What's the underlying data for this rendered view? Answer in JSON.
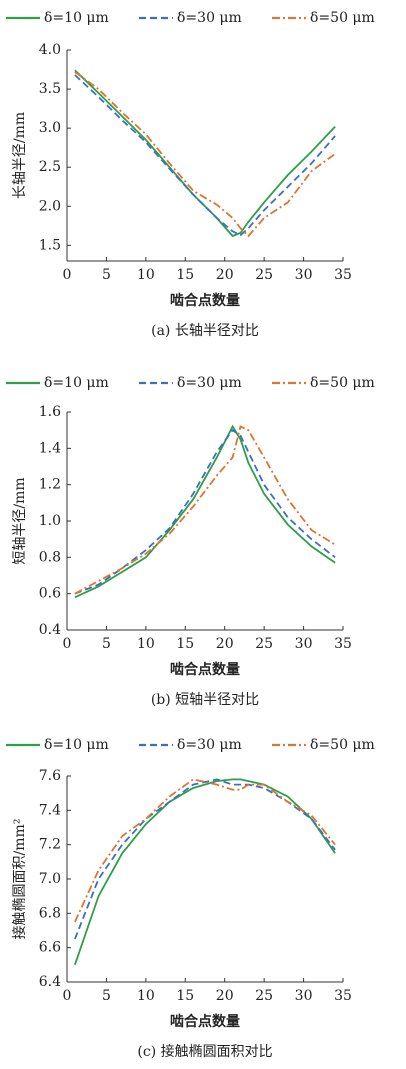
{
  "chart_data": [
    {
      "type": "line",
      "xlabel": "啮合点数量",
      "ylabel": "长轴半径/mm",
      "caption": "(a) 长轴半径对比",
      "x": [
        1,
        4,
        7,
        10,
        13,
        16,
        19,
        21,
        22,
        23,
        25,
        28,
        31,
        34
      ],
      "series": [
        {
          "name": "δ=10 μm",
          "color": "#2e9e47",
          "linestyle": "solid",
          "values": [
            3.74,
            3.45,
            3.15,
            2.85,
            2.5,
            2.15,
            1.85,
            1.62,
            1.66,
            1.8,
            2.05,
            2.4,
            2.7,
            3.02
          ]
        },
        {
          "name": "δ=30 μm",
          "color": "#3b6fc2",
          "linestyle": "dashed",
          "values": [
            3.68,
            3.4,
            3.1,
            2.82,
            2.48,
            2.15,
            1.85,
            1.68,
            1.63,
            1.72,
            1.95,
            2.25,
            2.55,
            2.9
          ]
        },
        {
          "name": "δ=50 μm",
          "color": "#dd7433",
          "linestyle": "dashdot",
          "values": [
            3.72,
            3.5,
            3.2,
            2.92,
            2.55,
            2.2,
            2.02,
            1.85,
            1.72,
            1.62,
            1.85,
            2.05,
            2.45,
            2.67
          ]
        }
      ],
      "xlim": [
        0,
        35
      ],
      "xticks": [
        0,
        5,
        10,
        15,
        20,
        25,
        30,
        35
      ],
      "ylim": [
        1.3,
        4.0
      ],
      "yticks": [
        1.5,
        {
          "value": 2,
          "label": "2.0"
        },
        2.5,
        {
          "value": 3,
          "label": "3.0"
        },
        3.5,
        {
          "value": 4,
          "label": "4.0"
        }
      ]
    },
    {
      "type": "line",
      "xlabel": "啮合点数量",
      "ylabel": "短轴半径/mm",
      "caption": "(b) 短轴半径对比",
      "x": [
        1,
        4,
        7,
        10,
        13,
        16,
        19,
        21,
        22,
        23,
        25,
        28,
        31,
        34
      ],
      "series": [
        {
          "name": "δ=10 μm",
          "color": "#2e9e47",
          "linestyle": "solid",
          "values": [
            0.58,
            0.64,
            0.72,
            0.8,
            0.95,
            1.12,
            1.35,
            1.52,
            1.45,
            1.32,
            1.15,
            0.98,
            0.86,
            0.77
          ]
        },
        {
          "name": "δ=30 μm",
          "color": "#3b6fc2",
          "linestyle": "dashed",
          "values": [
            0.6,
            0.65,
            0.74,
            0.84,
            0.96,
            1.15,
            1.38,
            1.5,
            1.47,
            1.38,
            1.2,
            1.02,
            0.9,
            0.8
          ]
        },
        {
          "name": "δ=50 μm",
          "color": "#dd7433",
          "linestyle": "dashdot",
          "values": [
            0.6,
            0.67,
            0.74,
            0.82,
            0.93,
            1.08,
            1.25,
            1.35,
            1.52,
            1.5,
            1.35,
            1.12,
            0.95,
            0.87
          ]
        }
      ],
      "xlim": [
        0,
        35
      ],
      "xticks": [
        0,
        5,
        10,
        15,
        20,
        25,
        30,
        35
      ],
      "ylim": [
        0.4,
        1.6
      ],
      "yticks": [
        0.4,
        0.6,
        0.8,
        {
          "value": 1,
          "label": "1.0"
        },
        1.2,
        1.4,
        1.6
      ]
    },
    {
      "type": "line",
      "xlabel": "啮合点数量",
      "ylabel": "接触椭圆面积/mm²",
      "caption": "(c) 接触椭圆面积对比",
      "x": [
        1,
        4,
        7,
        10,
        13,
        16,
        19,
        21,
        22,
        23,
        25,
        28,
        31,
        34
      ],
      "series": [
        {
          "name": "δ=10 μm",
          "color": "#2e9e47",
          "linestyle": "solid",
          "values": [
            6.5,
            6.9,
            7.15,
            7.32,
            7.45,
            7.53,
            7.57,
            7.58,
            7.58,
            7.57,
            7.55,
            7.48,
            7.35,
            7.15
          ]
        },
        {
          "name": "δ=30 μm",
          "color": "#3b6fc2",
          "linestyle": "dashed",
          "values": [
            6.65,
            7.0,
            7.2,
            7.35,
            7.45,
            7.55,
            7.58,
            7.55,
            7.55,
            7.55,
            7.53,
            7.45,
            7.35,
            7.17
          ]
        },
        {
          "name": "δ=50 μm",
          "color": "#dd7433",
          "linestyle": "dashdot",
          "values": [
            6.75,
            7.05,
            7.25,
            7.35,
            7.48,
            7.58,
            7.55,
            7.52,
            7.52,
            7.55,
            7.55,
            7.45,
            7.37,
            7.2
          ]
        }
      ],
      "xlim": [
        0,
        35
      ],
      "xticks": [
        0,
        5,
        10,
        15,
        20,
        25,
        30,
        35
      ],
      "ylim": [
        6.4,
        7.6
      ],
      "yticks": [
        6.4,
        6.6,
        6.8,
        {
          "value": 7,
          "label": "7.0"
        },
        7.2,
        7.4,
        7.6
      ]
    }
  ]
}
